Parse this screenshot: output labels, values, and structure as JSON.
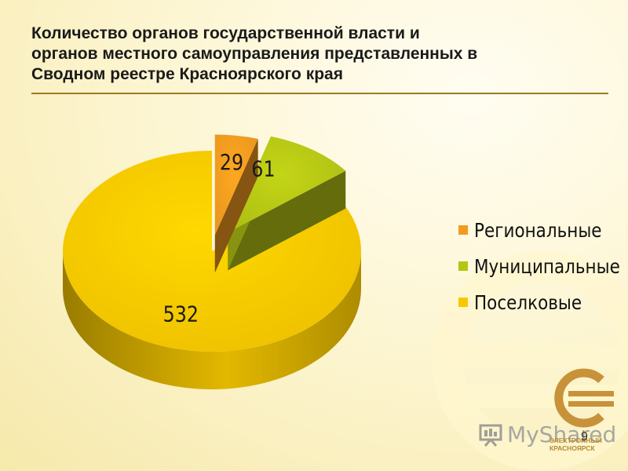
{
  "title": {
    "lines": [
      "Количество органов государственной власти и",
      "органов местного самоуправления представленных в",
      "Сводном реестре Красноярского края"
    ]
  },
  "chart_data": {
    "type": "pie",
    "categories": [
      "Региональные",
      "Муниципальные",
      "Поселковые"
    ],
    "values": [
      29,
      61,
      532
    ],
    "data_labels": [
      "29",
      "61",
      "532"
    ],
    "colors": [
      "#f29b1f",
      "#b5c514",
      "#f7c800"
    ],
    "legend_position": "right",
    "title": ""
  },
  "slide_number": "9",
  "watermark": {
    "site": "MyShared",
    "brand_line1": "ЭЛЕКТРОННЫЙ",
    "brand_line2": "КРАСНОЯРСК"
  }
}
